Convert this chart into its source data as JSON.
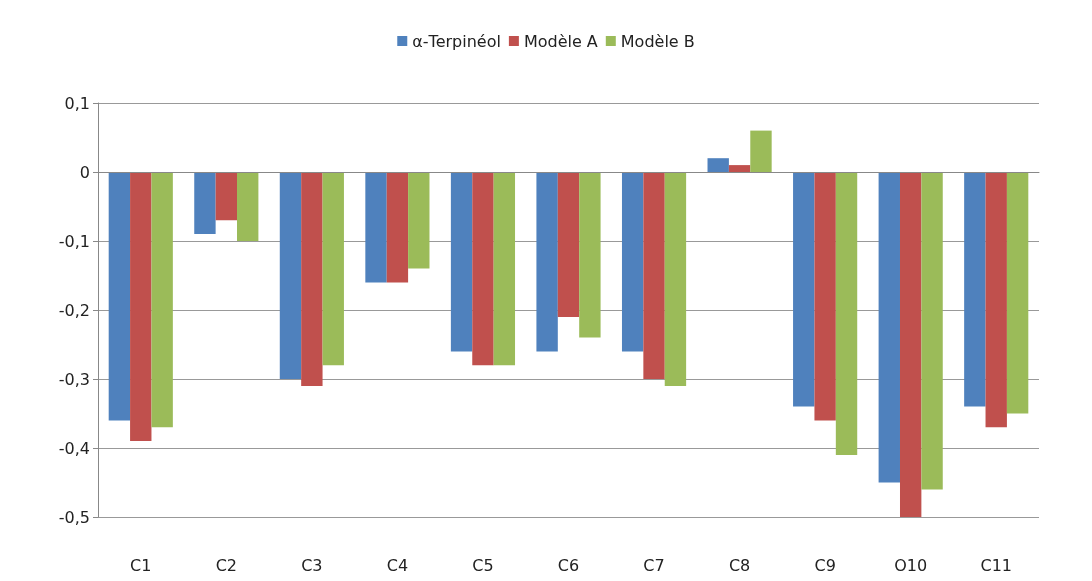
{
  "chart_data": {
    "type": "bar",
    "categories": [
      "C1",
      "C2",
      "C3",
      "C4",
      "C5",
      "C6",
      "C7",
      "C8",
      "C9",
      "O10",
      "C11"
    ],
    "series": [
      {
        "name": "α-Terpinéol",
        "color": "#4f81bd",
        "values": [
          -0.36,
          -0.09,
          -0.3,
          -0.16,
          -0.26,
          -0.26,
          -0.26,
          0.02,
          -0.34,
          -0.45,
          -0.34
        ]
      },
      {
        "name": "Modèle A",
        "color": "#c0504d",
        "values": [
          -0.39,
          -0.07,
          -0.31,
          -0.16,
          -0.28,
          -0.21,
          -0.3,
          0.01,
          -0.36,
          -0.5,
          -0.37
        ]
      },
      {
        "name": "Modèle B",
        "color": "#9bbb59",
        "values": [
          -0.37,
          -0.1,
          -0.28,
          -0.14,
          -0.28,
          -0.24,
          -0.31,
          0.06,
          -0.41,
          -0.46,
          -0.35
        ]
      }
    ],
    "ylim": [
      -0.5,
      0.1
    ],
    "yticks": [
      {
        "value": -0.5,
        "label": "-0,5"
      },
      {
        "value": -0.4,
        "label": "-0,4"
      },
      {
        "value": -0.3,
        "label": "-0,3"
      },
      {
        "value": -0.2,
        "label": "-0,2"
      },
      {
        "value": -0.1,
        "label": "-0,1"
      },
      {
        "value": 0,
        "label": "0"
      },
      {
        "value": 0.1,
        "label": "0,1"
      }
    ],
    "grid": "y",
    "legend": "top"
  }
}
